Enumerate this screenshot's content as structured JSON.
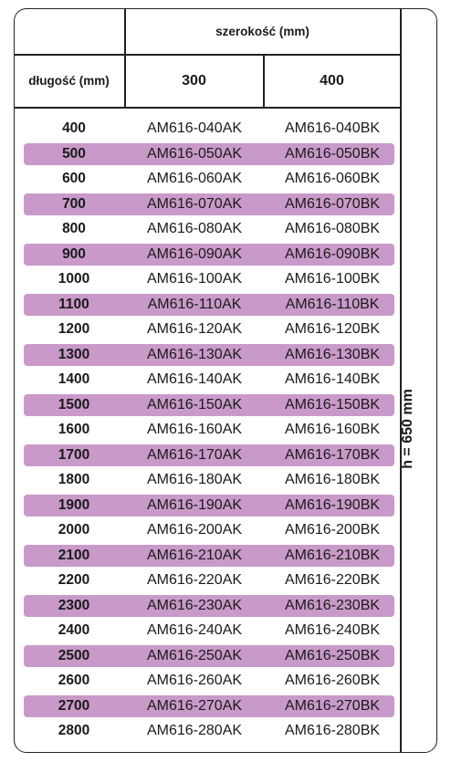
{
  "table": {
    "header_width": "szerokość (mm)",
    "header_length": "długość (mm)",
    "width_values": [
      "300",
      "400"
    ],
    "height_note": "h = 650 mm",
    "rows": [
      {
        "length": "400",
        "a": "AM616-040AK",
        "b": "AM616-040BK"
      },
      {
        "length": "500",
        "a": "AM616-050AK",
        "b": "AM616-050BK"
      },
      {
        "length": "600",
        "a": "AM616-060AK",
        "b": "AM616-060BK"
      },
      {
        "length": "700",
        "a": "AM616-070AK",
        "b": "AM616-070BK"
      },
      {
        "length": "800",
        "a": "AM616-080AK",
        "b": "AM616-080BK"
      },
      {
        "length": "900",
        "a": "AM616-090AK",
        "b": "AM616-090BK"
      },
      {
        "length": "1000",
        "a": "AM616-100AK",
        "b": "AM616-100BK"
      },
      {
        "length": "1100",
        "a": "AM616-110AK",
        "b": "AM616-110BK"
      },
      {
        "length": "1200",
        "a": "AM616-120AK",
        "b": "AM616-120BK"
      },
      {
        "length": "1300",
        "a": "AM616-130AK",
        "b": "AM616-130BK"
      },
      {
        "length": "1400",
        "a": "AM616-140AK",
        "b": "AM616-140BK"
      },
      {
        "length": "1500",
        "a": "AM616-150AK",
        "b": "AM616-150BK"
      },
      {
        "length": "1600",
        "a": "AM616-160AK",
        "b": "AM616-160BK"
      },
      {
        "length": "1700",
        "a": "AM616-170AK",
        "b": "AM616-170BK"
      },
      {
        "length": "1800",
        "a": "AM616-180AK",
        "b": "AM616-180BK"
      },
      {
        "length": "1900",
        "a": "AM616-190AK",
        "b": "AM616-190BK"
      },
      {
        "length": "2000",
        "a": "AM616-200AK",
        "b": "AM616-200BK"
      },
      {
        "length": "2100",
        "a": "AM616-210AK",
        "b": "AM616-210BK"
      },
      {
        "length": "2200",
        "a": "AM616-220AK",
        "b": "AM616-220BK"
      },
      {
        "length": "2300",
        "a": "AM616-230AK",
        "b": "AM616-230BK"
      },
      {
        "length": "2400",
        "a": "AM616-240AK",
        "b": "AM616-240BK"
      },
      {
        "length": "2500",
        "a": "AM616-250AK",
        "b": "AM616-250BK"
      },
      {
        "length": "2600",
        "a": "AM616-260AK",
        "b": "AM616-260BK"
      },
      {
        "length": "2700",
        "a": "AM616-270AK",
        "b": "AM616-270BK"
      },
      {
        "length": "2800",
        "a": "AM616-280AK",
        "b": "AM616-280BK"
      }
    ]
  },
  "colors": {
    "row_highlight": "#c99ac9",
    "border": "#222222"
  }
}
